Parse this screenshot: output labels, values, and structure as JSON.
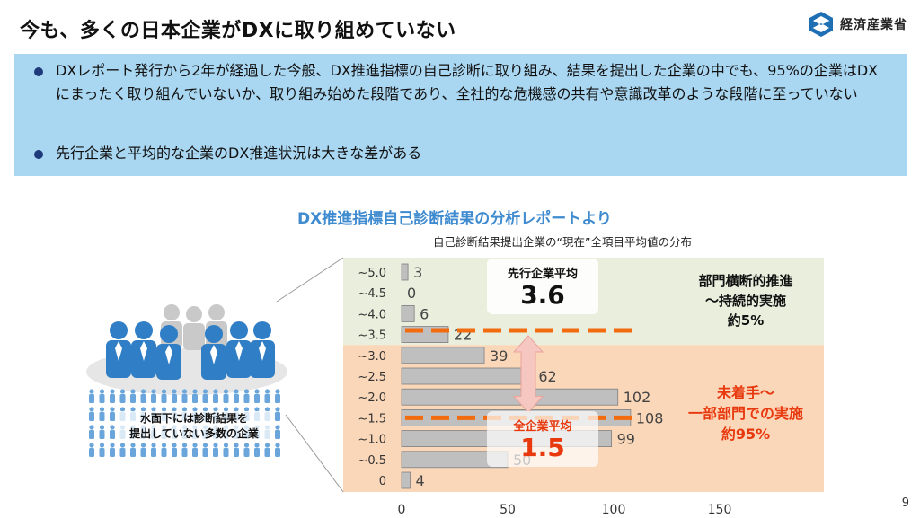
{
  "header": {
    "title": "今も、多くの日本企業がDXに取り組めていない",
    "logo_text": "経済産業省"
  },
  "summary": {
    "bullets": [
      "DXレポート発行から2年が経過した今般、DX推進指標の自己診断に取り組み、結果を提出した企業の中でも、95%の企業はDXにまったく取り組んでいないか、取り組み始めた段階であり、全社的な危機感の共有や意識改革のような段階に至っていない",
      "先行企業と平均的な企業のDX推進状況は大きな差がある"
    ],
    "background_color": "#a9d6f1"
  },
  "illustration": {
    "label_line1": "水面下には診断結果を",
    "label_line2": "提出していない多数の企業",
    "icon": "people-crowd-iceberg-icon"
  },
  "chart_data": {
    "type": "bar",
    "orientation": "horizontal",
    "title": "DX推進指標自己診断結果の分析レポートより",
    "subtitle": "自己診断結果提出企業の“現在”全項目平均値の分布",
    "categories": [
      "~5.0",
      "~4.5",
      "~4.0",
      "~3.5",
      "~3.0",
      "~2.5",
      "~2.0",
      "~1.5",
      "~1.0",
      "~0.5",
      "0"
    ],
    "values": [
      3,
      0,
      6,
      22,
      39,
      62,
      102,
      108,
      99,
      50,
      4
    ],
    "x_ticks": [
      0,
      50,
      100,
      150
    ],
    "xlim": [
      0,
      200
    ],
    "grid": false,
    "bar_color": "#bfbfbf",
    "bar_border": "#7f7f7f",
    "zones": [
      {
        "from_category": "~5.0",
        "to_category": "~3.5",
        "color": "#e9eedd"
      },
      {
        "from_category": "~3.0",
        "to_category": "0",
        "color": "#fbd7b9"
      }
    ],
    "reference_lines": [
      {
        "name": "先行企業平均",
        "value": 3.6,
        "color": "#f26b0f"
      },
      {
        "name": "全企業平均",
        "value": 1.5,
        "color": "#f26b0f"
      }
    ],
    "annotations": {
      "leader_label": "先行企業平均",
      "leader_value": "3.6",
      "avg_label": "全企業平均",
      "avg_value": "1.5",
      "zone_top_line1": "部門横断的推進",
      "zone_top_line2": "～持続的実施",
      "zone_top_line3": "約5%",
      "zone_bottom_line1": "未着手～",
      "zone_bottom_line2": "一部部門での実施",
      "zone_bottom_line3": "約95%"
    },
    "accent_red": "#e8380d",
    "arrow_color": "#f6c6c0"
  },
  "footer": {
    "page_number": "9"
  }
}
